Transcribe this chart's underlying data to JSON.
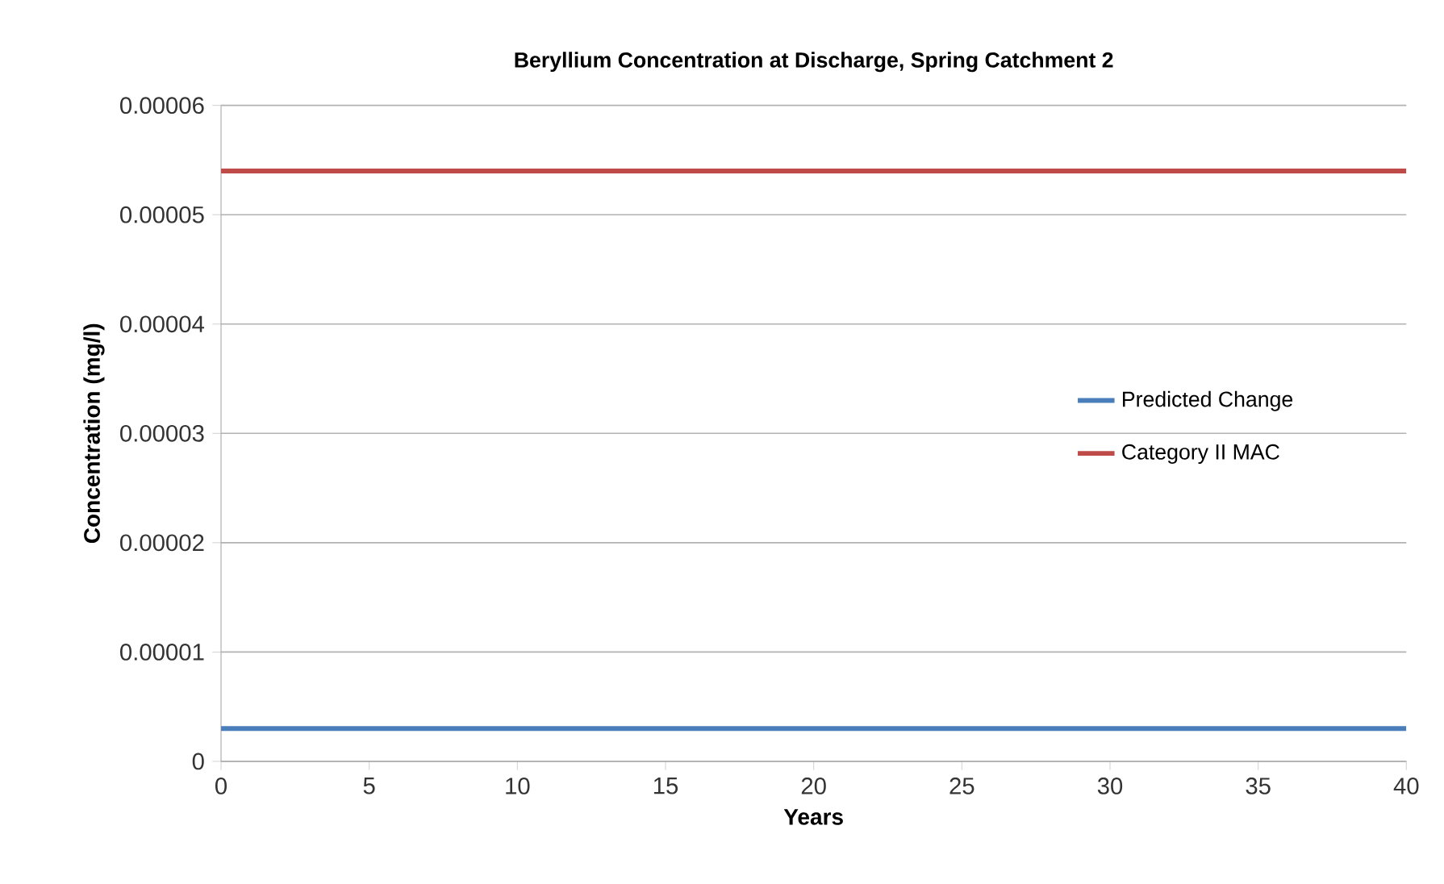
{
  "chart_data": {
    "type": "line",
    "title": "Beryllium Concentration at Discharge, Spring Catchment 2",
    "xlabel": "Years",
    "ylabel": "Concentration (mg/l)",
    "x": [
      0,
      40
    ],
    "series": [
      {
        "name": "Predicted Change",
        "color": "#4a7ebb",
        "values": [
          3e-06,
          3e-06
        ]
      },
      {
        "name": "Category II MAC",
        "color": "#be4b48",
        "values": [
          5.4e-05,
          5.4e-05
        ]
      }
    ],
    "xlim": [
      0,
      40
    ],
    "xticks": [
      0,
      5,
      10,
      15,
      20,
      25,
      30,
      35,
      40
    ],
    "ylim": [
      0,
      6e-05
    ],
    "yticks": [
      {
        "value": 0,
        "label": "0"
      },
      {
        "value": 1e-05,
        "label": "0.00001"
      },
      {
        "value": 2e-05,
        "label": "0.00002"
      },
      {
        "value": 3e-05,
        "label": "0.00003"
      },
      {
        "value": 4e-05,
        "label": "0.00004"
      },
      {
        "value": 5e-05,
        "label": "0.00005"
      },
      {
        "value": 6e-05,
        "label": "0.00006"
      }
    ],
    "grid": "y",
    "legend": "right",
    "marker": "none",
    "line_style": "solid"
  }
}
